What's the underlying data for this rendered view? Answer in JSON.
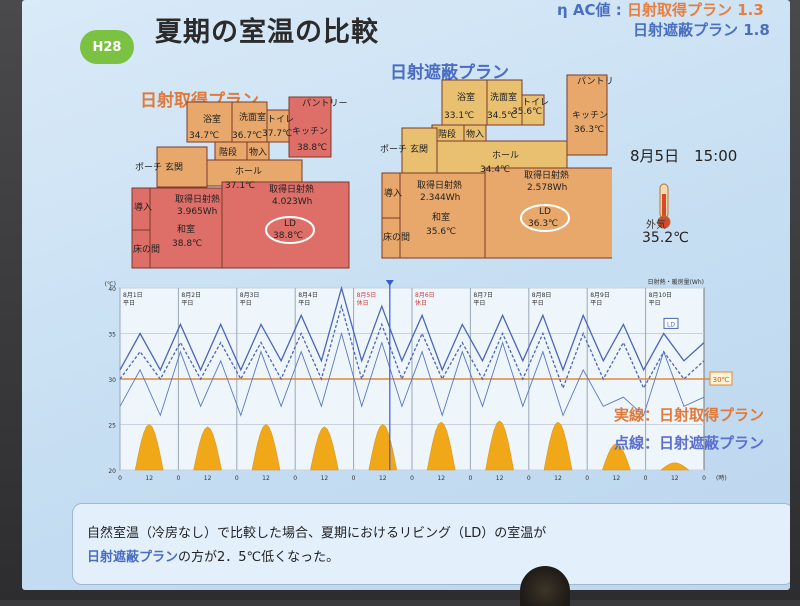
{
  "slide": {
    "badge": "H28",
    "title": "夏期の室温の比較",
    "eta_prefix": "η AC値 : ",
    "eta_gain_label": "日射取得プラン 1.3",
    "eta_shade_label": "日射遮蔽プラン 1.8",
    "plan_gain": "日射取得プラン",
    "plan_shade": "日射遮蔽プラン",
    "date_time": "8月5日　15:00",
    "outdoor_label": "外気",
    "outdoor_temp": "35.2℃",
    "legend_solid": "実線：日射取得プラン",
    "legend_dotted": "点線：日射遮蔽プラン",
    "caption_line1": "自然室温（冷房なし）で比較した場合、夏期におけるリビング（LD）の室温が",
    "caption_line2_hl": "日射遮蔽プラン",
    "caption_line2_rest": "の方が2．5℃低くなった。"
  },
  "plan_gain_rooms": {
    "bath": "浴室",
    "bath_t": "34.7℃",
    "wash": "洗面室",
    "wash_t": "36.7℃",
    "toilet": "トイレ",
    "toilet_t": "37.7℃",
    "pantry": "パントリー",
    "kitchen": "キッチン",
    "kitchen_t": "38.8℃",
    "stair": "階段",
    "storage": "物入",
    "porch": "ポーチ",
    "entrance": "玄関",
    "hall": "ホール",
    "hall_t": "37.1℃",
    "guest": "導入",
    "japanese": "床の間",
    "washi": "和室",
    "washi_t": "38.8℃",
    "ld": "LD",
    "ld_t": "38.8℃",
    "gain_label1": "取得日射熱",
    "gain_val1": "3.965Wh",
    "gain_label2": "取得日射熱",
    "gain_val2": "4.023Wh"
  },
  "plan_shade_rooms": {
    "bath": "浴室",
    "bath_t": "33.1℃",
    "wash": "洗面室",
    "wash_t": "34.5℃",
    "toilet": "トイレ",
    "toilet_t": "35.6℃",
    "pantry": "パントリー",
    "kitchen": "キッチン",
    "kitchen_t": "36.3℃",
    "stair": "階段",
    "storage": "物入",
    "porch": "ポーチ",
    "entrance": "玄関",
    "hall": "ホール",
    "hall_t": "34.4℃",
    "guest": "導入",
    "japanese": "床の間",
    "washi": "和室",
    "washi_t": "35.6℃",
    "ld": "LD",
    "ld_t": "36.3℃",
    "gain_label1": "取得日射熱",
    "gain_val1": "2.344Wh",
    "gain_label2": "取得日射熱",
    "gain_val2": "2.578Wh"
  },
  "chart_data": {
    "type": "line",
    "ylabel": "(℃)",
    "secondary_label": "日射熱・暖房量(Wh)",
    "xlabel": "(時)",
    "days": [
      {
        "label": "8月1日",
        "sub": "平日",
        "holiday": false
      },
      {
        "label": "8月2日",
        "sub": "平日",
        "holiday": false
      },
      {
        "label": "8月3日",
        "sub": "平日",
        "holiday": false
      },
      {
        "label": "8月4日",
        "sub": "平日",
        "holiday": false
      },
      {
        "label": "8月5日",
        "sub": "休日",
        "holiday": true
      },
      {
        "label": "8月6日",
        "sub": "休日",
        "holiday": true
      },
      {
        "label": "8月7日",
        "sub": "平日",
        "holiday": false
      },
      {
        "label": "8月8日",
        "sub": "平日",
        "holiday": false
      },
      {
        "label": "8月9日",
        "sub": "平日",
        "holiday": false
      },
      {
        "label": "8月10日",
        "sub": "平日",
        "holiday": false
      }
    ],
    "x_ticks": [
      "0",
      "12",
      "0",
      "12",
      "0",
      "12",
      "0",
      "12",
      "0",
      "12",
      "0",
      "12",
      "0",
      "12",
      "0",
      "12",
      "0",
      "12",
      "0",
      "12",
      "0"
    ],
    "y_ticks": [
      "40",
      "35",
      "30",
      "25",
      "20"
    ],
    "ylim": [
      20,
      40
    ],
    "ref_line_label": "30℃",
    "ref_line_value": 30,
    "ld_tag": "LD",
    "series": [
      {
        "name": "LD",
        "style": "solid",
        "color": "#4a66b8",
        "values": [
          31,
          35,
          31,
          36,
          31,
          36,
          31,
          36,
          32,
          37,
          32,
          40,
          32,
          38,
          32,
          37,
          31,
          36,
          32,
          37,
          32,
          37,
          31,
          37,
          32,
          36,
          31,
          35,
          32,
          34
        ]
      },
      {
        "name": "LD",
        "style": "dotted",
        "color": "#4a66b8",
        "values": [
          30,
          33,
          30,
          34,
          30,
          34,
          30,
          34,
          30,
          35,
          30,
          38,
          30,
          36,
          30,
          35,
          30,
          34,
          30,
          35,
          30,
          35,
          29,
          35,
          30,
          34,
          29,
          33,
          30,
          32
        ]
      },
      {
        "name": "外気",
        "style": "thin",
        "color": "#5a78c4",
        "values": [
          27,
          31,
          26,
          33,
          27,
          32,
          26,
          33,
          27,
          33,
          27,
          35,
          27,
          34,
          27,
          33,
          26,
          33,
          27,
          34,
          27,
          33,
          26,
          31,
          27,
          28,
          26,
          33,
          27,
          28
        ]
      }
    ],
    "solar_bars": [
      3.8,
      3.6,
      3.8,
      3.6,
      3.8,
      4.0,
      4.1,
      4.0,
      2.2,
      0.6
    ]
  }
}
